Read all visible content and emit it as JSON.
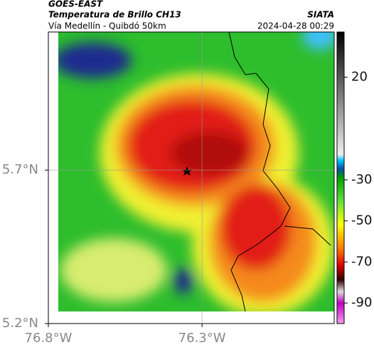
{
  "header": {
    "title": "GOES-EAST",
    "subtitle": "Temperatura de Brillo CH13",
    "location": "Vía Medellín - Quibdó 50km",
    "source": "SIATA",
    "timestamp": "2024-04-28 00:29"
  },
  "map": {
    "xlim": [
      -76.8,
      -75.87
    ],
    "ylim": [
      5.2,
      6.15
    ],
    "xticks": [
      {
        "value": -76.8,
        "label": "76.8°W"
      },
      {
        "value": -76.3,
        "label": "76.3°W"
      }
    ],
    "yticks": [
      {
        "value": 5.7,
        "label": "5.7°N"
      },
      {
        "value": 5.2,
        "label": "5.2°N"
      }
    ],
    "grid": true
  },
  "colorbar": {
    "lim": [
      42,
      -100
    ],
    "ticks": [
      20,
      -30,
      -50,
      -70,
      -90
    ]
  }
}
